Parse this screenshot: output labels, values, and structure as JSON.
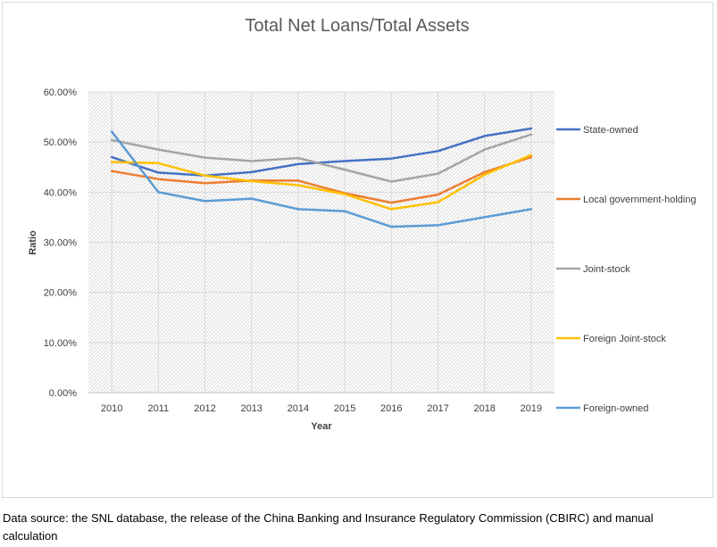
{
  "chart_data": {
    "type": "line",
    "title": "Total Net Loans/Total Assets",
    "xlabel": "Year",
    "ylabel": "Ratio",
    "x": [
      2010,
      2011,
      2012,
      2013,
      2014,
      2015,
      2016,
      2017,
      2018,
      2019
    ],
    "ylim": [
      0,
      0.6
    ],
    "yticks": [
      "0.00%",
      "10.00%",
      "20.00%",
      "30.00%",
      "40.00%",
      "50.00%",
      "60.00%"
    ],
    "grid": true,
    "legend_position": "right",
    "series": [
      {
        "name": "State-owned",
        "color": "#4472c4",
        "values": [
          0.47,
          0.439,
          0.433,
          0.44,
          0.456,
          0.462,
          0.467,
          0.482,
          0.512,
          0.527
        ]
      },
      {
        "name": "Local government-holding",
        "color": "#ed7d31",
        "values": [
          0.442,
          0.426,
          0.418,
          0.423,
          0.423,
          0.398,
          0.379,
          0.395,
          0.44,
          0.47
        ]
      },
      {
        "name": "Joint-stock",
        "color": "#a5a5a5",
        "values": [
          0.504,
          0.485,
          0.469,
          0.462,
          0.468,
          0.445,
          0.421,
          0.437,
          0.485,
          0.515
        ]
      },
      {
        "name": "Foreign Joint-stock",
        "color": "#ffc000",
        "values": [
          0.46,
          0.458,
          0.433,
          0.422,
          0.414,
          0.396,
          0.366,
          0.38,
          0.435,
          0.474
        ]
      },
      {
        "name": "Foreign-owned",
        "color": "#5b9bd5",
        "values": [
          0.521,
          0.4,
          0.382,
          0.387,
          0.366,
          0.362,
          0.331,
          0.334,
          0.35,
          0.366
        ]
      }
    ]
  },
  "note": "Data source: the SNL database, the release of the China Banking and Insurance Regulatory Commission (CBIRC) and manual calculation"
}
